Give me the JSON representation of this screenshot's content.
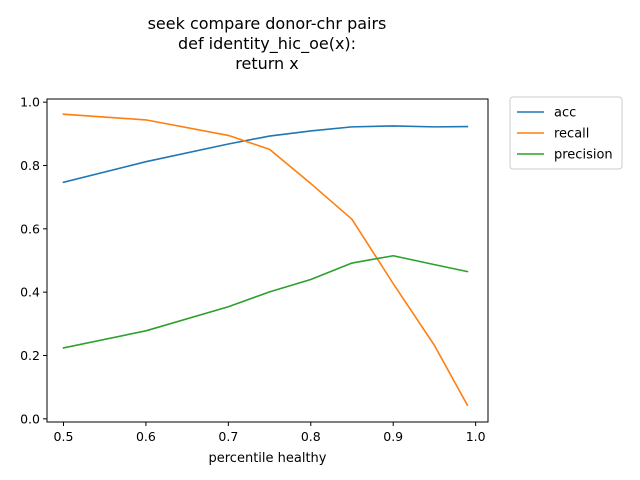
{
  "chart_data": {
    "type": "line",
    "title_lines": [
      "seek compare donor-chr pairs",
      "def identity_hic_oe(x):",
      "return x"
    ],
    "xlabel": "percentile healthy",
    "ylabel": "",
    "xlim": [
      0.48,
      1.015
    ],
    "ylim": [
      -0.01,
      1.01
    ],
    "x_ticks": [
      0.5,
      0.6,
      0.7,
      0.8,
      0.9,
      1.0
    ],
    "x_tick_labels": [
      "0.5",
      "0.6",
      "0.7",
      "0.8",
      "0.9",
      "1.0"
    ],
    "y_ticks": [
      0.0,
      0.2,
      0.4,
      0.6,
      0.8,
      1.0
    ],
    "y_tick_labels": [
      "0.0",
      "0.2",
      "0.4",
      "0.6",
      "0.8",
      "1.0"
    ],
    "grid": false,
    "legend_position": "outside-top-right",
    "x": [
      0.5,
      0.6,
      0.7,
      0.75,
      0.8,
      0.85,
      0.9,
      0.95,
      0.99
    ],
    "series": [
      {
        "name": "acc",
        "color": "#1f77b4",
        "values": [
          0.747,
          0.812,
          0.868,
          0.893,
          0.909,
          0.922,
          0.925,
          0.922,
          0.923
        ]
      },
      {
        "name": "recall",
        "color": "#ff7f0e",
        "values": [
          0.962,
          0.944,
          0.895,
          0.851,
          0.743,
          0.63,
          0.427,
          0.232,
          0.043
        ]
      },
      {
        "name": "precision",
        "color": "#2ca02c",
        "values": [
          0.224,
          0.278,
          0.354,
          0.401,
          0.44,
          0.492,
          0.515,
          0.487,
          0.465
        ]
      }
    ]
  }
}
